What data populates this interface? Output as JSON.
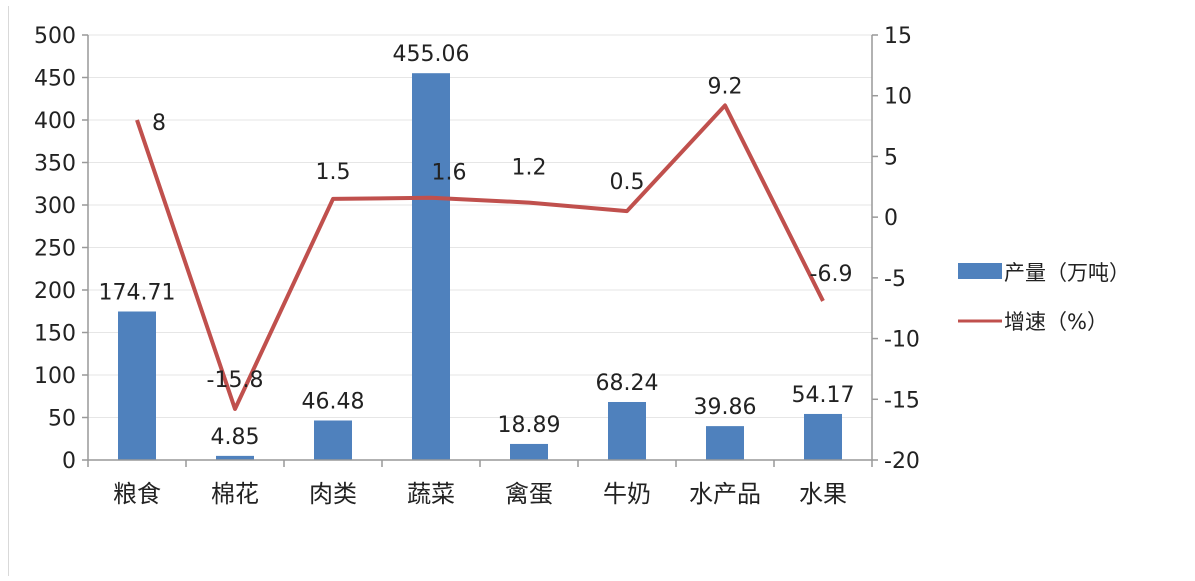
{
  "chart_data": {
    "type": "bar",
    "categories": [
      "粮食",
      "棉花",
      "肉类",
      "蔬菜",
      "禽蛋",
      "牛奶",
      "水产品",
      "水果"
    ],
    "series": [
      {
        "name": "产量（万吨）",
        "type": "bar",
        "axis": "left",
        "values": [
          174.71,
          4.85,
          46.48,
          455.06,
          18.89,
          68.24,
          39.86,
          54.17
        ],
        "labels": [
          "174.71",
          "4.85",
          "46.48",
          "455.06",
          "18.89",
          "68.24",
          "39.86",
          "54.17"
        ]
      },
      {
        "name": "增速（%）",
        "type": "line",
        "axis": "right",
        "values": [
          8,
          -15.8,
          1.5,
          1.6,
          1.2,
          0.5,
          9.2,
          -6.9
        ],
        "labels": [
          "8",
          "-15.8",
          "1.5",
          "1.6",
          "1.2",
          "0.5",
          "9.2",
          "-6.9"
        ]
      }
    ],
    "y_left": {
      "min": 0,
      "max": 500,
      "ticks": [
        "0",
        "50",
        "100",
        "150",
        "200",
        "250",
        "300",
        "350",
        "400",
        "450",
        "500"
      ]
    },
    "y_right": {
      "min": -20,
      "max": 15,
      "ticks": [
        "-20",
        "-15",
        "-10",
        "-5",
        "0",
        "5",
        "10",
        "15"
      ]
    },
    "legend_position": "right",
    "colors": {
      "bar": "#4f81bd",
      "line": "#c0504d",
      "axis": "#999999",
      "grid": "#e6e6e6"
    }
  }
}
